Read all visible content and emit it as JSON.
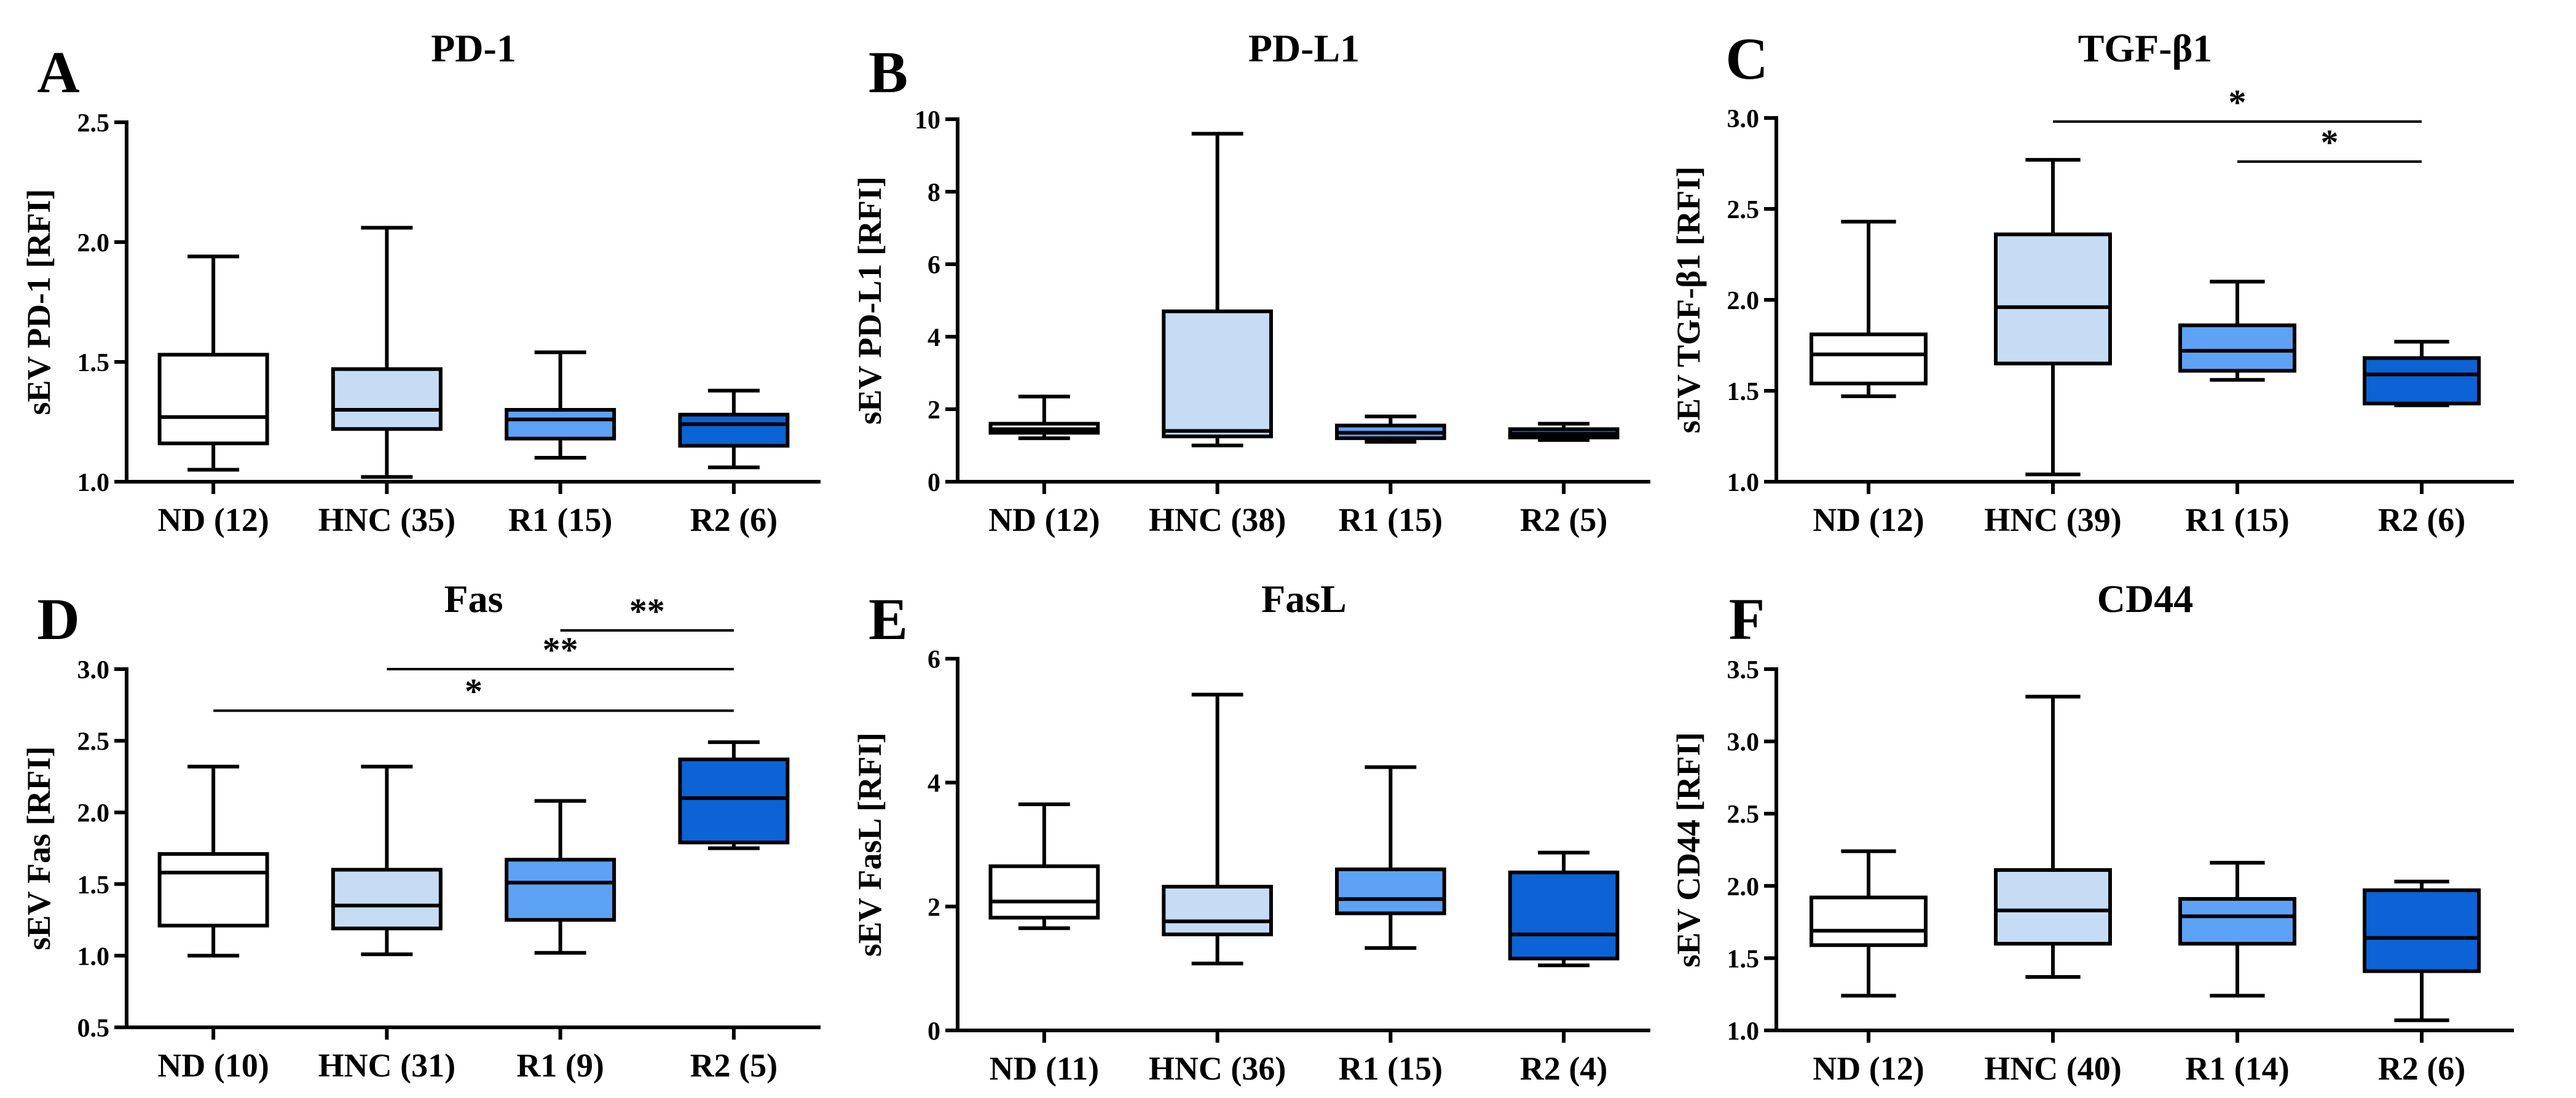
{
  "colors": {
    "ND": "#ffffff",
    "HNC": "#c6dcf5",
    "R1": "#5ea2f5",
    "R2": "#0b63d6",
    "outline": "#000000"
  },
  "chart_data": [
    {
      "type": "box",
      "panel": "A",
      "title": "PD-1",
      "ylabel": "sEV PD-1 [RFI]",
      "ylim": [
        1.0,
        2.5
      ],
      "yticks": [
        "1.0",
        "1.5",
        "2.0",
        "2.5"
      ],
      "categories": [
        "ND (12)",
        "HNC (35)",
        "R1 (15)",
        "R2 (6)"
      ],
      "groups": [
        "ND",
        "HNC",
        "R1",
        "R2"
      ],
      "boxes": [
        {
          "min": 1.05,
          "q1": 1.16,
          "median": 1.27,
          "q3": 1.53,
          "max": 1.94
        },
        {
          "min": 1.02,
          "q1": 1.22,
          "median": 1.3,
          "q3": 1.47,
          "max": 2.06
        },
        {
          "min": 1.1,
          "q1": 1.18,
          "median": 1.26,
          "q3": 1.3,
          "max": 1.54
        },
        {
          "min": 1.06,
          "q1": 1.15,
          "median": 1.24,
          "q3": 1.28,
          "max": 1.38
        }
      ],
      "significance": []
    },
    {
      "type": "box",
      "panel": "B",
      "title": "PD-L1",
      "ylabel": "sEV PD-L1 [RFI]",
      "ylim": [
        0,
        10
      ],
      "yticks": [
        "0",
        "2",
        "4",
        "6",
        "8",
        "10"
      ],
      "categories": [
        "ND (12)",
        "HNC (38)",
        "R1 (15)",
        "R2 (5)"
      ],
      "groups": [
        "ND",
        "HNC",
        "R1",
        "R2"
      ],
      "boxes": [
        {
          "min": 1.2,
          "q1": 1.35,
          "median": 1.45,
          "q3": 1.6,
          "max": 2.35
        },
        {
          "min": 1.0,
          "q1": 1.25,
          "median": 1.4,
          "q3": 4.7,
          "max": 9.6
        },
        {
          "min": 1.1,
          "q1": 1.2,
          "median": 1.35,
          "q3": 1.55,
          "max": 1.8
        },
        {
          "min": 1.15,
          "q1": 1.22,
          "median": 1.32,
          "q3": 1.45,
          "max": 1.6
        }
      ],
      "significance": []
    },
    {
      "type": "box",
      "panel": "C",
      "title": "TGF-β1",
      "ylabel": "sEV TGF-β1 [RFI]",
      "ylim": [
        1.0,
        3.0
      ],
      "yticks": [
        "1.0",
        "1.5",
        "2.0",
        "2.5",
        "3.0"
      ],
      "categories": [
        "ND (12)",
        "HNC (39)",
        "R1 (15)",
        "R2 (6)"
      ],
      "groups": [
        "ND",
        "HNC",
        "R1",
        "R2"
      ],
      "boxes": [
        {
          "min": 1.47,
          "q1": 1.54,
          "median": 1.7,
          "q3": 1.81,
          "max": 2.43
        },
        {
          "min": 1.04,
          "q1": 1.65,
          "median": 1.96,
          "q3": 2.36,
          "max": 2.77
        },
        {
          "min": 1.56,
          "q1": 1.61,
          "median": 1.72,
          "q3": 1.86,
          "max": 2.1
        },
        {
          "min": 1.42,
          "q1": 1.43,
          "median": 1.59,
          "q3": 1.68,
          "max": 1.77
        }
      ],
      "significance": [
        {
          "from": 1,
          "to": 3,
          "y": 2.98,
          "label": "*"
        },
        {
          "from": 2,
          "to": 3,
          "y": 2.76,
          "label": "*"
        }
      ]
    },
    {
      "type": "box",
      "panel": "D",
      "title": "Fas",
      "ylabel": "sEV Fas [RFI]",
      "ylim": [
        0.5,
        3.0
      ],
      "yticks": [
        "0.5",
        "1.0",
        "1.5",
        "2.0",
        "2.5",
        "3.0"
      ],
      "categories": [
        "ND (10)",
        "HNC (31)",
        "R1 (9)",
        "R2 (5)"
      ],
      "groups": [
        "ND",
        "HNC",
        "R1",
        "R2"
      ],
      "boxes": [
        {
          "min": 1.0,
          "q1": 1.21,
          "median": 1.58,
          "q3": 1.71,
          "max": 2.32
        },
        {
          "min": 1.01,
          "q1": 1.19,
          "median": 1.35,
          "q3": 1.6,
          "max": 2.32
        },
        {
          "min": 1.02,
          "q1": 1.25,
          "median": 1.51,
          "q3": 1.67,
          "max": 2.08
        },
        {
          "min": 1.75,
          "q1": 1.79,
          "median": 2.1,
          "q3": 2.37,
          "max": 2.49
        }
      ],
      "significance": [
        {
          "from": 0,
          "to": 3,
          "y": 2.71,
          "label": "*"
        },
        {
          "from": 1,
          "to": 3,
          "y": 3.0,
          "label": "**"
        },
        {
          "from": 2,
          "to": 3,
          "y": 3.27,
          "label": "**"
        }
      ]
    },
    {
      "type": "box",
      "panel": "E",
      "title": "FasL",
      "ylabel": "sEV FasL [RFI]",
      "ylim": [
        0,
        6
      ],
      "yticks": [
        "0",
        "2",
        "4",
        "6"
      ],
      "categories": [
        "ND (11)",
        "HNC (36)",
        "R1 (15)",
        "R2 (4)"
      ],
      "groups": [
        "ND",
        "HNC",
        "R1",
        "R2"
      ],
      "boxes": [
        {
          "min": 1.65,
          "q1": 1.82,
          "median": 2.08,
          "q3": 2.65,
          "max": 3.65
        },
        {
          "min": 1.08,
          "q1": 1.55,
          "median": 1.76,
          "q3": 2.32,
          "max": 5.42
        },
        {
          "min": 1.33,
          "q1": 1.89,
          "median": 2.12,
          "q3": 2.6,
          "max": 4.25
        },
        {
          "min": 1.05,
          "q1": 1.16,
          "median": 1.55,
          "q3": 2.55,
          "max": 2.87
        }
      ],
      "significance": []
    },
    {
      "type": "box",
      "panel": "F",
      "title": "CD44",
      "ylabel": "sEV CD44 [RFI]",
      "ylim": [
        1.0,
        3.5
      ],
      "yticks": [
        "1.0",
        "1.5",
        "2.0",
        "2.5",
        "3.0",
        "3.5"
      ],
      "categories": [
        "ND (12)",
        "HNC (40)",
        "R1 (14)",
        "R2 (6)"
      ],
      "groups": [
        "ND",
        "HNC",
        "R1",
        "R2"
      ],
      "boxes": [
        {
          "min": 1.24,
          "q1": 1.59,
          "median": 1.69,
          "q3": 1.92,
          "max": 2.24
        },
        {
          "min": 1.37,
          "q1": 1.6,
          "median": 1.83,
          "q3": 2.11,
          "max": 3.31
        },
        {
          "min": 1.24,
          "q1": 1.6,
          "median": 1.79,
          "q3": 1.91,
          "max": 2.16
        },
        {
          "min": 1.07,
          "q1": 1.41,
          "median": 1.64,
          "q3": 1.97,
          "max": 2.03
        }
      ],
      "significance": []
    }
  ]
}
